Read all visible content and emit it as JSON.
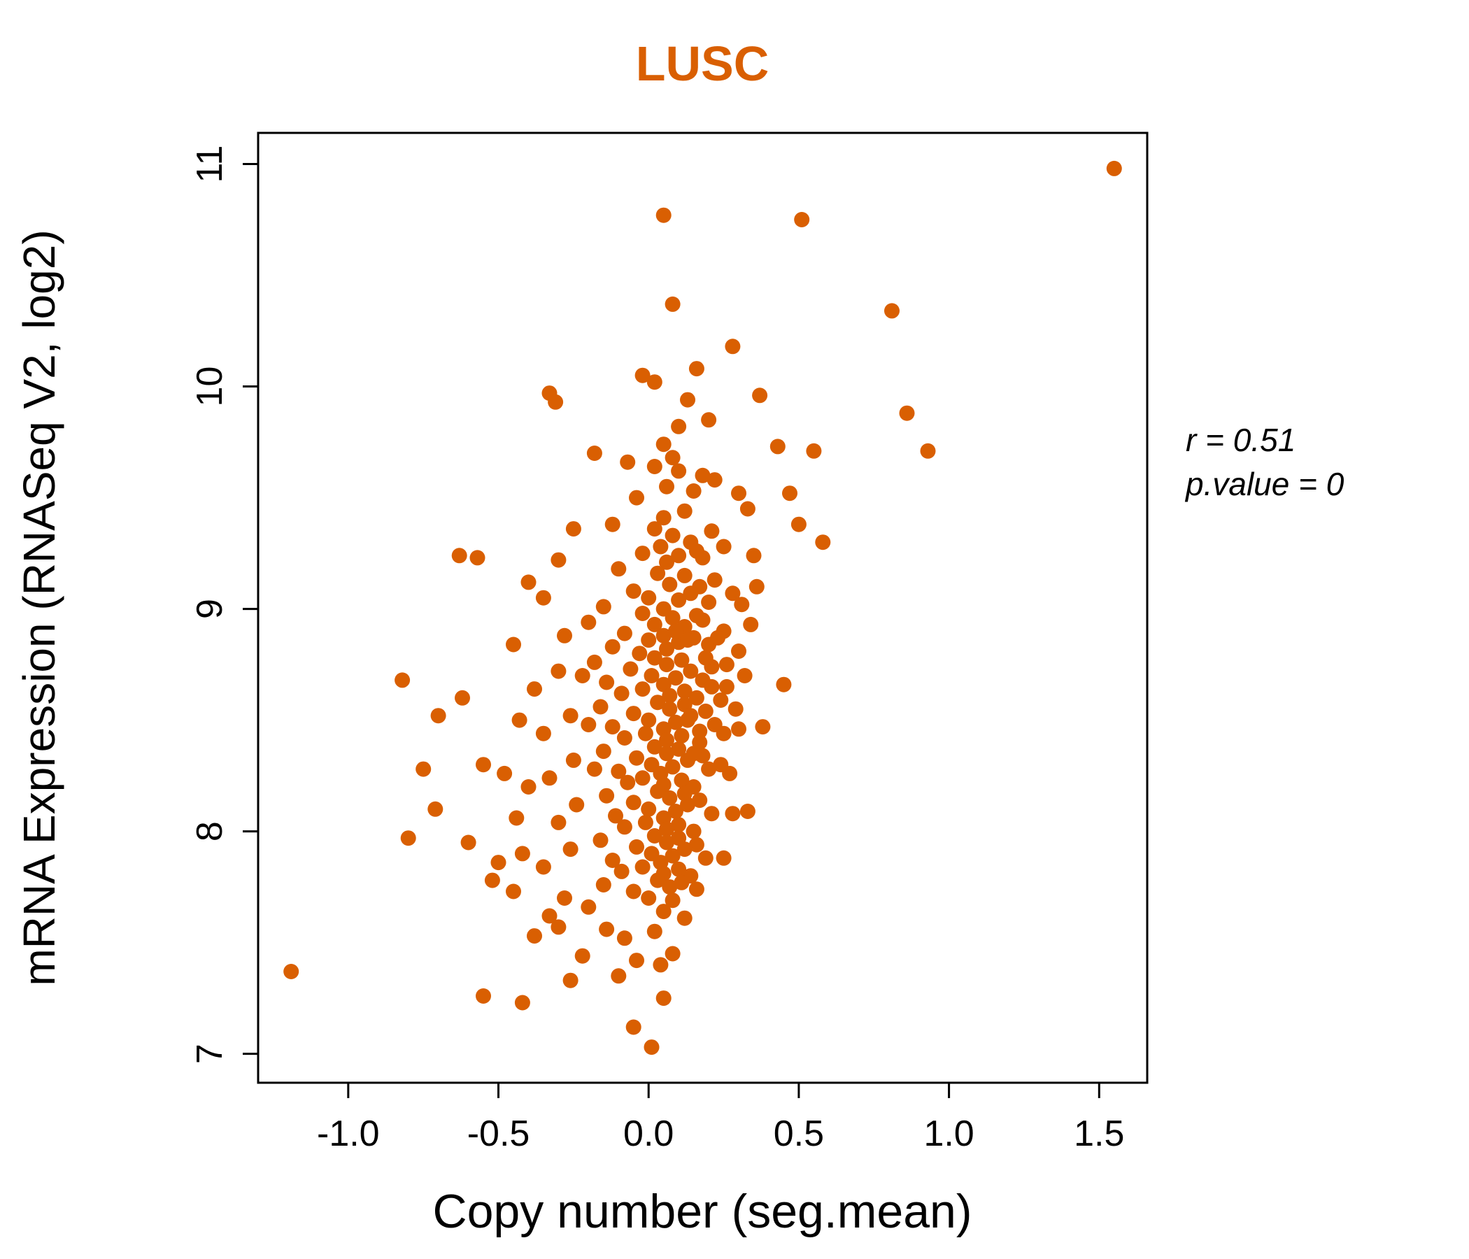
{
  "chart_data": {
    "type": "scatter",
    "title": "LUSC",
    "xlabel": "Copy number (seg.mean)",
    "ylabel": "mRNA Expression (RNASeq V2, log2)",
    "legend": "none",
    "grid": false,
    "point_color": "#D95F02",
    "title_color": "#D95F02",
    "axis_color": "#000000",
    "x_ticks": [
      -1.0,
      -0.5,
      0.0,
      0.5,
      1.0,
      1.5
    ],
    "x_tick_labels": [
      "-1.0",
      "-0.5",
      "0.0",
      "0.5",
      "1.0",
      "1.5"
    ],
    "y_ticks": [
      7,
      8,
      9,
      10,
      11
    ],
    "y_tick_labels": [
      "7",
      "8",
      "9",
      "10",
      "11"
    ],
    "xlim": [
      -1.3,
      1.66
    ],
    "ylim": [
      6.87,
      11.14
    ],
    "annotation": {
      "line1": "r = 0.51",
      "line2": "p.value = 0"
    },
    "points": [
      [
        1.55,
        10.98
      ],
      [
        0.05,
        10.77
      ],
      [
        0.51,
        10.75
      ],
      [
        0.08,
        10.37
      ],
      [
        0.81,
        10.34
      ],
      [
        0.28,
        10.18
      ],
      [
        0.16,
        10.08
      ],
      [
        -0.02,
        10.05
      ],
      [
        0.02,
        10.02
      ],
      [
        0.37,
        9.96
      ],
      [
        -0.33,
        9.97
      ],
      [
        -0.31,
        9.93
      ],
      [
        0.13,
        9.94
      ],
      [
        0.86,
        9.88
      ],
      [
        0.2,
        9.85
      ],
      [
        0.1,
        9.82
      ],
      [
        0.93,
        9.71
      ],
      [
        0.55,
        9.71
      ],
      [
        -0.18,
        9.7
      ],
      [
        0.05,
        9.74
      ],
      [
        0.43,
        9.73
      ],
      [
        -0.07,
        9.66
      ],
      [
        0.02,
        9.64
      ],
      [
        0.1,
        9.62
      ],
      [
        0.22,
        9.58
      ],
      [
        0.06,
        9.55
      ],
      [
        0.15,
        9.53
      ],
      [
        0.3,
        9.52
      ],
      [
        -0.04,
        9.5
      ],
      [
        0.18,
        9.6
      ],
      [
        0.08,
        9.68
      ],
      [
        0.47,
        9.52
      ],
      [
        0.33,
        9.45
      ],
      [
        0.12,
        9.44
      ],
      [
        0.05,
        9.41
      ],
      [
        -0.12,
        9.38
      ],
      [
        0.5,
        9.38
      ],
      [
        0.02,
        9.36
      ],
      [
        0.21,
        9.35
      ],
      [
        0.08,
        9.33
      ],
      [
        -0.25,
        9.36
      ],
      [
        0.58,
        9.3
      ],
      [
        0.14,
        9.3
      ],
      [
        0.04,
        9.28
      ],
      [
        -0.63,
        9.24
      ],
      [
        -0.57,
        9.23
      ],
      [
        -0.02,
        9.25
      ],
      [
        0.1,
        9.24
      ],
      [
        0.18,
        9.23
      ],
      [
        -0.3,
        9.22
      ],
      [
        0.06,
        9.21
      ],
      [
        0.25,
        9.28
      ],
      [
        0.35,
        9.24
      ],
      [
        0.16,
        9.26
      ],
      [
        -0.1,
        9.18
      ],
      [
        0.03,
        9.16
      ],
      [
        0.12,
        9.15
      ],
      [
        0.22,
        9.13
      ],
      [
        -0.4,
        9.12
      ],
      [
        0.07,
        9.11
      ],
      [
        0.17,
        9.1
      ],
      [
        -0.05,
        9.08
      ],
      [
        0.28,
        9.07
      ],
      [
        0.0,
        9.05
      ],
      [
        0.1,
        9.04
      ],
      [
        0.2,
        9.03
      ],
      [
        -0.35,
        9.05
      ],
      [
        0.31,
        9.02
      ],
      [
        -0.15,
        9.01
      ],
      [
        0.05,
        9.0
      ],
      [
        0.36,
        9.1
      ],
      [
        0.14,
        9.07
      ],
      [
        -0.02,
        8.98
      ],
      [
        0.08,
        8.96
      ],
      [
        0.18,
        8.95
      ],
      [
        -0.2,
        8.94
      ],
      [
        0.02,
        8.93
      ],
      [
        0.12,
        8.92
      ],
      [
        0.25,
        8.9
      ],
      [
        -0.08,
        8.89
      ],
      [
        0.05,
        8.88
      ],
      [
        0.15,
        8.87
      ],
      [
        -0.28,
        8.88
      ],
      [
        0.0,
        8.86
      ],
      [
        0.1,
        8.85
      ],
      [
        0.2,
        8.84
      ],
      [
        -0.12,
        8.83
      ],
      [
        0.06,
        8.82
      ],
      [
        0.3,
        8.81
      ],
      [
        -0.03,
        8.8
      ],
      [
        0.13,
        8.86
      ],
      [
        0.34,
        8.93
      ],
      [
        -0.45,
        8.84
      ],
      [
        0.09,
        8.9
      ],
      [
        0.16,
        8.97
      ],
      [
        0.23,
        8.87
      ],
      [
        -0.82,
        8.68
      ],
      [
        0.02,
        8.78
      ],
      [
        0.11,
        8.77
      ],
      [
        -0.18,
        8.76
      ],
      [
        0.06,
        8.75
      ],
      [
        0.21,
        8.74
      ],
      [
        -0.06,
        8.73
      ],
      [
        0.14,
        8.72
      ],
      [
        -0.3,
        8.72
      ],
      [
        0.01,
        8.7
      ],
      [
        0.09,
        8.69
      ],
      [
        0.18,
        8.68
      ],
      [
        -0.14,
        8.67
      ],
      [
        0.05,
        8.66
      ],
      [
        0.26,
        8.65
      ],
      [
        -0.02,
        8.64
      ],
      [
        0.12,
        8.63
      ],
      [
        -0.38,
        8.64
      ],
      [
        0.07,
        8.61
      ],
      [
        0.16,
        8.6
      ],
      [
        -0.09,
        8.62
      ],
      [
        0.32,
        8.7
      ],
      [
        -0.22,
        8.7
      ],
      [
        0.45,
        8.66
      ],
      [
        0.19,
        8.78
      ],
      [
        0.21,
        8.65
      ],
      [
        0.26,
        8.75
      ],
      [
        -0.7,
        8.52
      ],
      [
        -0.62,
        8.6
      ],
      [
        0.03,
        8.58
      ],
      [
        0.12,
        8.57
      ],
      [
        -0.16,
        8.56
      ],
      [
        0.07,
        8.55
      ],
      [
        0.19,
        8.54
      ],
      [
        -0.05,
        8.53
      ],
      [
        0.14,
        8.52
      ],
      [
        -0.26,
        8.52
      ],
      [
        0.0,
        8.5
      ],
      [
        0.09,
        8.49
      ],
      [
        0.22,
        8.48
      ],
      [
        -0.12,
        8.47
      ],
      [
        0.05,
        8.46
      ],
      [
        0.3,
        8.46
      ],
      [
        -0.01,
        8.44
      ],
      [
        0.11,
        8.43
      ],
      [
        -0.35,
        8.44
      ],
      [
        0.06,
        8.41
      ],
      [
        0.17,
        8.4
      ],
      [
        -0.08,
        8.42
      ],
      [
        -0.43,
        8.5
      ],
      [
        0.25,
        8.44
      ],
      [
        -0.2,
        8.48
      ],
      [
        0.38,
        8.47
      ],
      [
        0.24,
        8.59
      ],
      [
        0.13,
        8.5
      ],
      [
        0.29,
        8.55
      ],
      [
        0.17,
        8.45
      ],
      [
        -0.75,
        8.28
      ],
      [
        0.02,
        8.38
      ],
      [
        0.1,
        8.37
      ],
      [
        -0.15,
        8.36
      ],
      [
        0.06,
        8.35
      ],
      [
        0.18,
        8.34
      ],
      [
        -0.04,
        8.33
      ],
      [
        0.13,
        8.32
      ],
      [
        -0.25,
        8.32
      ],
      [
        0.01,
        8.3
      ],
      [
        0.08,
        8.29
      ],
      [
        0.2,
        8.28
      ],
      [
        -0.1,
        8.27
      ],
      [
        0.04,
        8.26
      ],
      [
        0.27,
        8.26
      ],
      [
        -0.02,
        8.24
      ],
      [
        0.11,
        8.23
      ],
      [
        -0.33,
        8.24
      ],
      [
        0.05,
        8.21
      ],
      [
        0.15,
        8.2
      ],
      [
        -0.07,
        8.22
      ],
      [
        -0.48,
        8.26
      ],
      [
        -0.55,
        8.3
      ],
      [
        0.24,
        8.3
      ],
      [
        -0.18,
        8.28
      ],
      [
        -0.4,
        8.2
      ],
      [
        0.15,
        8.35
      ],
      [
        -0.71,
        8.1
      ],
      [
        0.03,
        8.18
      ],
      [
        0.12,
        8.17
      ],
      [
        -0.14,
        8.16
      ],
      [
        0.07,
        8.15
      ],
      [
        0.17,
        8.14
      ],
      [
        -0.05,
        8.13
      ],
      [
        0.13,
        8.12
      ],
      [
        -0.24,
        8.12
      ],
      [
        0.0,
        8.1
      ],
      [
        0.09,
        8.09
      ],
      [
        0.21,
        8.08
      ],
      [
        -0.11,
        8.07
      ],
      [
        0.05,
        8.06
      ],
      [
        0.28,
        8.08
      ],
      [
        -0.01,
        8.04
      ],
      [
        0.1,
        8.03
      ],
      [
        -0.3,
        8.04
      ],
      [
        0.06,
        8.01
      ],
      [
        0.15,
        8.0
      ],
      [
        -0.08,
        8.02
      ],
      [
        -0.44,
        8.06
      ],
      [
        0.33,
        8.09
      ],
      [
        -0.8,
        7.97
      ],
      [
        -0.6,
        7.95
      ],
      [
        0.02,
        7.98
      ],
      [
        0.1,
        7.97
      ],
      [
        -0.16,
        7.96
      ],
      [
        0.06,
        7.95
      ],
      [
        0.16,
        7.94
      ],
      [
        -0.04,
        7.93
      ],
      [
        0.12,
        7.92
      ],
      [
        -0.26,
        7.92
      ],
      [
        0.01,
        7.9
      ],
      [
        0.08,
        7.89
      ],
      [
        0.19,
        7.88
      ],
      [
        -0.12,
        7.87
      ],
      [
        0.04,
        7.86
      ],
      [
        0.25,
        7.88
      ],
      [
        -0.02,
        7.84
      ],
      [
        0.1,
        7.83
      ],
      [
        -0.35,
        7.84
      ],
      [
        0.05,
        7.81
      ],
      [
        0.14,
        7.8
      ],
      [
        -0.09,
        7.82
      ],
      [
        -0.5,
        7.86
      ],
      [
        -0.42,
        7.9
      ],
      [
        -0.52,
        7.78
      ],
      [
        0.03,
        7.78
      ],
      [
        0.11,
        7.77
      ],
      [
        -0.15,
        7.76
      ],
      [
        0.07,
        7.75
      ],
      [
        0.16,
        7.74
      ],
      [
        -0.05,
        7.73
      ],
      [
        -0.45,
        7.73
      ],
      [
        0.0,
        7.7
      ],
      [
        0.08,
        7.69
      ],
      [
        -0.28,
        7.7
      ],
      [
        -0.2,
        7.66
      ],
      [
        0.05,
        7.64
      ],
      [
        -0.33,
        7.62
      ],
      [
        0.12,
        7.61
      ],
      [
        -0.3,
        7.57
      ],
      [
        -0.14,
        7.56
      ],
      [
        0.02,
        7.55
      ],
      [
        -0.08,
        7.52
      ],
      [
        -0.38,
        7.53
      ],
      [
        0.08,
        7.45
      ],
      [
        -0.22,
        7.44
      ],
      [
        -0.04,
        7.42
      ],
      [
        -0.1,
        7.35
      ],
      [
        -0.26,
        7.33
      ],
      [
        0.04,
        7.4
      ],
      [
        -1.19,
        7.37
      ],
      [
        -0.55,
        7.26
      ],
      [
        -0.42,
        7.23
      ],
      [
        0.05,
        7.25
      ],
      [
        -0.05,
        7.12
      ],
      [
        0.01,
        7.03
      ]
    ]
  }
}
